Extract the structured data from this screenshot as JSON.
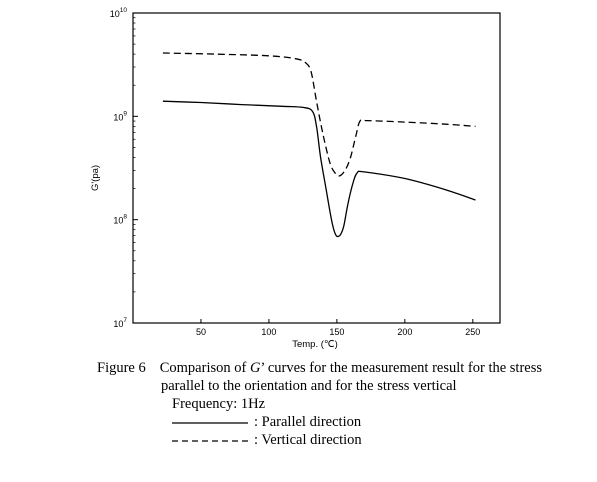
{
  "chart_data": {
    "type": "line",
    "xlabel": "Temp. (℃)",
    "ylabel": "G'(pa)",
    "xlim": [
      0,
      270
    ],
    "ylim_log10": [
      7,
      10
    ],
    "y_scale": "log",
    "x_ticks": [
      "50",
      "100",
      "150",
      "200",
      "250"
    ],
    "x_tick_values": [
      50,
      100,
      150,
      200,
      250
    ],
    "y_ticks": [
      {
        "value": 10,
        "base": "10",
        "exp": "10"
      },
      {
        "value": 9,
        "base": "10",
        "exp": "9"
      },
      {
        "value": 8,
        "base": "10",
        "exp": "8"
      },
      {
        "value": 7,
        "base": "10",
        "exp": "7"
      }
    ],
    "grid": false,
    "series": [
      {
        "name": "Parallel direction",
        "style": "solid",
        "points": [
          [
            22,
            1400000000.0
          ],
          [
            50,
            1360000000.0
          ],
          [
            80,
            1300000000.0
          ],
          [
            110,
            1250000000.0
          ],
          [
            125,
            1220000000.0
          ],
          [
            132,
            1120000000.0
          ],
          [
            135,
            800000000.0
          ],
          [
            138,
            400000000.0
          ],
          [
            142,
            200000000.0
          ],
          [
            146,
            100000000.0
          ],
          [
            149,
            72000000.0
          ],
          [
            152,
            70000000.0
          ],
          [
            155,
            86000000.0
          ],
          [
            158,
            140000000.0
          ],
          [
            162,
            230000000.0
          ],
          [
            165,
            285000000.0
          ],
          [
            170,
            290000000.0
          ],
          [
            200,
            250000000.0
          ],
          [
            230,
            195000000.0
          ],
          [
            252,
            155000000.0
          ]
        ]
      },
      {
        "name": "Vertical direction",
        "style": "dashed",
        "points": [
          [
            22,
            4100000000.0
          ],
          [
            60,
            4000000000.0
          ],
          [
            100,
            3850000000.0
          ],
          [
            120,
            3600000000.0
          ],
          [
            127,
            3300000000.0
          ],
          [
            131,
            2700000000.0
          ],
          [
            135,
            1400000000.0
          ],
          [
            140,
            650000000.0
          ],
          [
            145,
            350000000.0
          ],
          [
            149,
            280000000.0
          ],
          [
            152,
            265000000.0
          ],
          [
            156,
            300000000.0
          ],
          [
            160,
            400000000.0
          ],
          [
            164,
            650000000.0
          ],
          [
            167,
            900000000.0
          ],
          [
            172,
            910000000.0
          ],
          [
            200,
            880000000.0
          ],
          [
            230,
            840000000.0
          ],
          [
            252,
            800000000.0
          ]
        ]
      }
    ]
  },
  "caption": {
    "figure_no": "Figure 6",
    "line1_pre": "Comparison of ",
    "line1_sym": "G",
    "line1_post": "’ curves for the measurement result for the stress",
    "line2": "parallel to the orientation and for the stress vertical",
    "frequency": "Frequency: 1Hz",
    "legend_parallel": ": Parallel direction",
    "legend_vertical": ": Vertical direction"
  }
}
